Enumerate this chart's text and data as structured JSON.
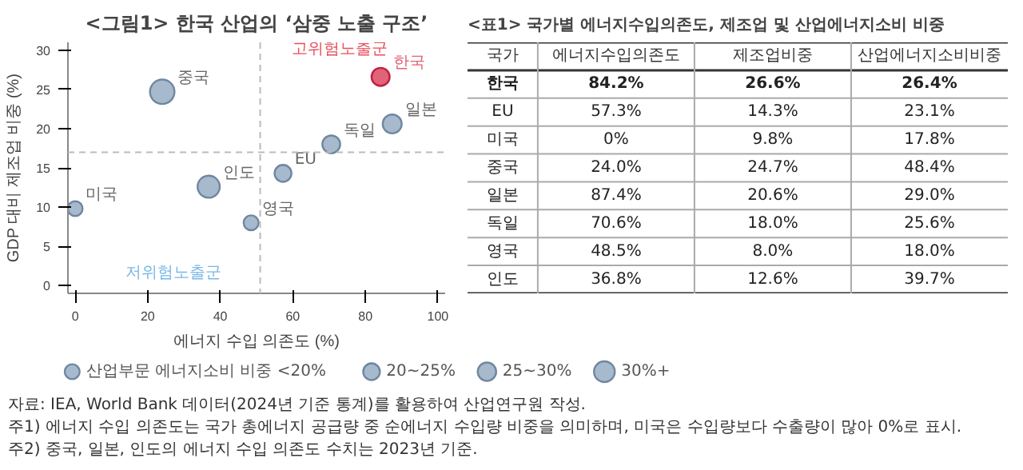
{
  "chart_data": [
    {
      "type": "bubble",
      "title": "<그림1> 한국 산업의 ‘삼중 노출 구조’",
      "xlabel": "에너지 수입 의존도 (%)",
      "ylabel": "GDP 대비 제조업 비중 (%)",
      "series": [
        {
          "name": "한국",
          "color": "#e06378",
          "x": [
            84.2
          ],
          "values": [
            26.6
          ],
          "sizes": [
            26.4
          ]
        },
        {
          "name": "EU",
          "color": "#a7b9cc",
          "x": [
            57.3
          ],
          "values": [
            14.3
          ],
          "sizes": [
            23.1
          ]
        },
        {
          "name": "미국",
          "color": "#a7b9cc",
          "x": [
            0
          ],
          "values": [
            9.8
          ],
          "sizes": [
            17.8
          ]
        },
        {
          "name": "중국",
          "color": "#a7b9cc",
          "x": [
            24.0
          ],
          "values": [
            24.7
          ],
          "sizes": [
            48.4
          ]
        },
        {
          "name": "일본",
          "color": "#a7b9cc",
          "x": [
            87.4
          ],
          "values": [
            20.6
          ],
          "sizes": [
            29.0
          ]
        },
        {
          "name": "독일",
          "color": "#a7b9cc",
          "x": [
            70.6
          ],
          "values": [
            18.0
          ],
          "sizes": [
            25.6
          ]
        },
        {
          "name": "영국",
          "color": "#a7b9cc",
          "x": [
            48.5
          ],
          "values": [
            8.0
          ],
          "sizes": [
            18.0
          ]
        },
        {
          "name": "인도",
          "color": "#a7b9cc",
          "x": [
            36.8
          ],
          "values": [
            12.6
          ],
          "sizes": [
            39.7
          ]
        }
      ],
      "size_legend": [
        {
          "value": 18,
          "label": "산업부문 에너지소비 비중 <20%"
        },
        {
          "value": 22.5,
          "label": "20~25%"
        },
        {
          "value": 27.5,
          "label": "25~30%"
        },
        {
          "value": 35,
          "label": "30%+"
        }
      ],
      "xlim": [
        -2,
        102
      ],
      "ylim": [
        -1,
        31
      ],
      "xticks": [
        0,
        20,
        40,
        60,
        80,
        100
      ],
      "yticks": [
        0,
        5,
        10,
        15,
        20,
        25,
        30
      ],
      "ref_lines": [
        {
          "axis": "x",
          "value": 51,
          "label": null,
          "color": "#bbbbbb",
          "line_style": "dashed"
        },
        {
          "axis": "y",
          "value": 17,
          "label": null,
          "color": "#bbbbbb",
          "line_style": "dashed"
        }
      ],
      "annotations": [
        "고위험노출군",
        "저위험노출군"
      ],
      "grid": false
    },
    {
      "type": "other",
      "title": "<표1> 국가별 에너지수입의존도, 제조업 및 산업에너지소비 비중",
      "categories": [
        "국가",
        "에너지수입의존도",
        "제조업비중",
        "산업에너지소비비중"
      ],
      "y_categories": [
        "한국",
        "EU",
        "미국",
        "중국",
        "일본",
        "독일",
        "영국",
        "인도"
      ],
      "cell_labels": [
        [
          "84.2%",
          "26.6%",
          "26.4%"
        ],
        [
          "57.3%",
          "14.3%",
          "23.1%"
        ],
        [
          "0%",
          "9.8%",
          "17.8%"
        ],
        [
          "24.0%",
          "24.7%",
          "48.4%"
        ],
        [
          "87.4%",
          "20.6%",
          "29.0%"
        ],
        [
          "70.6%",
          "18.0%",
          "25.6%"
        ],
        [
          "48.5%",
          "8.0%",
          "18.0%"
        ],
        [
          "36.8%",
          "12.6%",
          "39.7%"
        ]
      ],
      "annotations": [
        "자료: IEA, World Bank 데이터(2024년 기준 통계)를 활용하여 산업연구원 작성.",
        "주1) 에너지 수입 의존도는 국가 총에너지 공급량 중 순에너지 수입량 비중을 의미하며, 미국은 수입량보다 수출량이 많아 0%로 표시.",
        "주2) 중국, 일본, 인도의 에너지 수입 의존도 수치는 2023년 기준."
      ]
    }
  ]
}
